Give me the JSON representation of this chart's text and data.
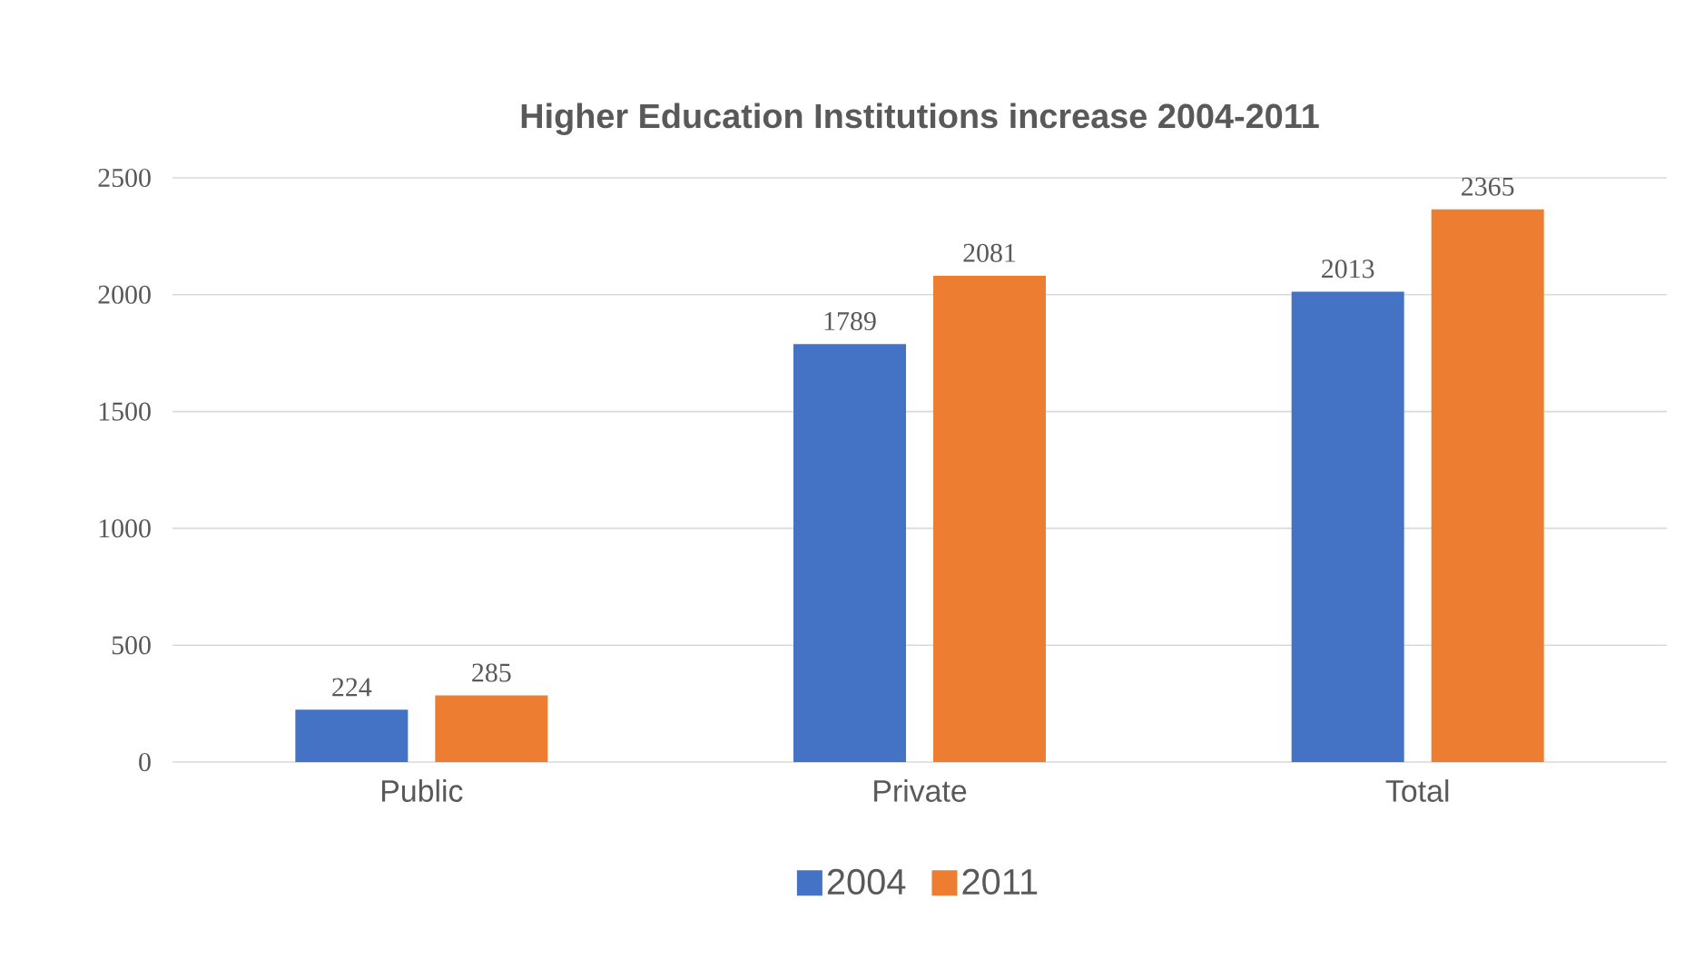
{
  "chart_data": {
    "type": "bar",
    "title": "Higher Education Institutions increase 2004-2011",
    "categories": [
      "Public",
      "Private",
      "Total"
    ],
    "series": [
      {
        "name": "2004",
        "color": "#4472c4",
        "values": [
          224,
          1789,
          2013
        ]
      },
      {
        "name": "2011",
        "color": "#ed7d31",
        "values": [
          285,
          2081,
          2365
        ]
      }
    ],
    "ylim": [
      0,
      2500
    ],
    "yticks": [
      0,
      500,
      1000,
      1500,
      2000,
      2500
    ],
    "grid": "y",
    "legend": "bottom",
    "data_labels": true
  }
}
